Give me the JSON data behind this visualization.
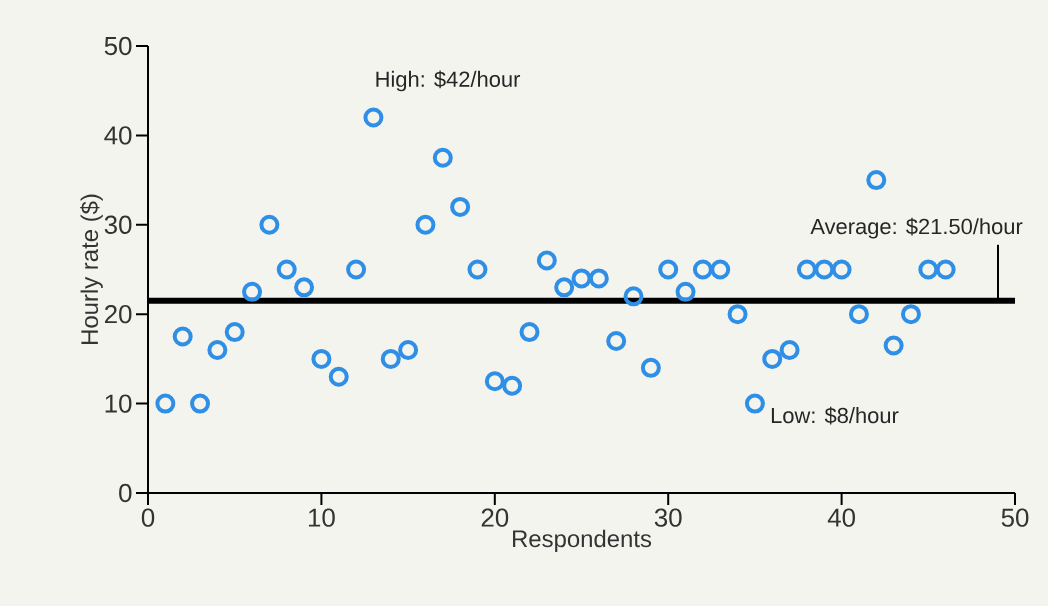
{
  "chart_data": {
    "type": "scatter",
    "xlabel": "Respondents",
    "ylabel": "Hourly rate ($)",
    "x": [
      1,
      2,
      3,
      4,
      5,
      6,
      7,
      8,
      9,
      10,
      11,
      12,
      13,
      14,
      15,
      16,
      17,
      18,
      19,
      20,
      21,
      22,
      23,
      24,
      25,
      26,
      27,
      28,
      29,
      30,
      31,
      32,
      33,
      34,
      35,
      36,
      37,
      38,
      39,
      40,
      41,
      42,
      43,
      44,
      45,
      46
    ],
    "values": [
      10,
      17.5,
      10,
      16,
      18,
      22.5,
      30,
      25,
      23,
      15,
      13,
      25,
      42,
      15,
      16,
      30,
      37.5,
      32,
      25,
      12.5,
      12,
      18,
      26,
      23,
      24,
      24,
      17,
      22,
      14,
      25,
      22.5,
      25,
      25,
      20,
      10,
      15,
      16,
      25,
      25,
      25,
      20,
      35,
      16.5,
      20,
      25,
      25
    ],
    "color": "#2f8fe6",
    "marker": "circle",
    "xlim": [
      0,
      50
    ],
    "xticks": [
      0,
      10,
      20,
      30,
      40,
      50
    ],
    "ylim": [
      0,
      50
    ],
    "yticks": [
      0,
      10,
      20,
      30,
      40,
      50
    ],
    "ref_lines": [
      {
        "axis": "y",
        "value": 21.5,
        "label": "Average: $21.50/hour",
        "color": "#000000"
      }
    ],
    "annotations": [
      {
        "text": "High: $42/hour",
        "x": 13,
        "y": 42
      },
      {
        "text": "Low: $8/hour",
        "x": 35,
        "y": 10
      }
    ]
  }
}
